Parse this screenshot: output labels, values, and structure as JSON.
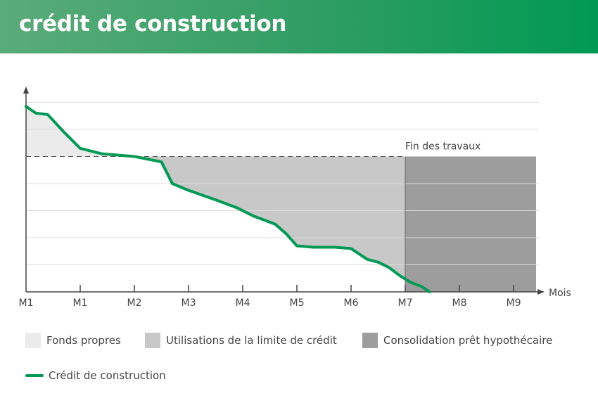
{
  "header": {
    "title": "crédit de construction"
  },
  "chart_data": {
    "type": "area",
    "x_ticks": [
      "M1",
      "M1",
      "M2",
      "M3",
      "M4",
      "M5",
      "M6",
      "M7",
      "M8",
      "M9"
    ],
    "x_axis_label": "Mois",
    "annotation": "Fin des travaux",
    "annotation_x": "M7",
    "ylim": [
      0,
      7
    ],
    "grid": true,
    "credit_limit": 5,
    "legend": [
      {
        "label": "Fonds propres",
        "color": "#ebebeb"
      },
      {
        "label": "Utilisations de la limite de crédit",
        "color": "#c8c8c8"
      },
      {
        "label": "Consolidation prêt hypothécaire",
        "color": "#9d9d9d"
      }
    ],
    "series": [
      {
        "name": "Crédit de construction",
        "color": "#009a54",
        "points": [
          [
            0,
            6.85
          ],
          [
            0.18,
            6.6
          ],
          [
            0.4,
            6.55
          ],
          [
            0.7,
            5.9
          ],
          [
            1.0,
            5.3
          ],
          [
            1.4,
            5.1
          ],
          [
            2.0,
            5.0
          ],
          [
            2.5,
            4.8
          ],
          [
            2.7,
            4.0
          ],
          [
            3.0,
            3.75
          ],
          [
            3.5,
            3.4
          ],
          [
            3.9,
            3.1
          ],
          [
            4.1,
            2.9
          ],
          [
            4.2,
            2.8
          ],
          [
            4.6,
            2.5
          ],
          [
            4.8,
            2.15
          ],
          [
            5.0,
            1.7
          ],
          [
            5.3,
            1.65
          ],
          [
            5.7,
            1.65
          ],
          [
            6.0,
            1.6
          ],
          [
            6.3,
            1.2
          ],
          [
            6.5,
            1.1
          ],
          [
            6.7,
            0.9
          ],
          [
            6.9,
            0.6
          ],
          [
            7.1,
            0.35
          ],
          [
            7.3,
            0.2
          ],
          [
            7.45,
            0.0
          ]
        ]
      }
    ]
  }
}
